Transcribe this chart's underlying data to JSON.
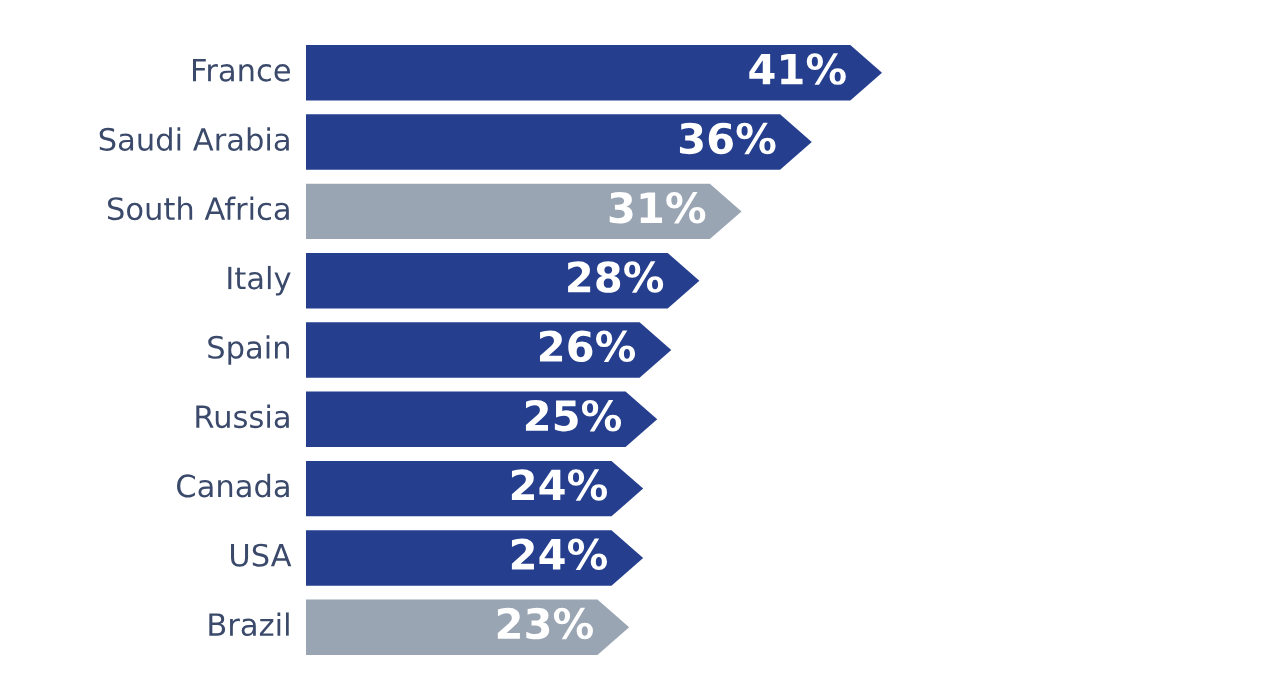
{
  "chart_data": {
    "type": "bar",
    "orientation": "horizontal",
    "data_labels": true,
    "categories": [
      "France",
      "Saudi Arabia",
      "South Africa",
      "Italy",
      "Spain",
      "Russia",
      "Canada",
      "USA",
      "Brazil"
    ],
    "values": [
      41,
      36,
      31,
      28,
      26,
      25,
      24,
      24,
      23
    ],
    "value_labels": [
      "41%",
      "36%",
      "31%",
      "28%",
      "26%",
      "25%",
      "24%",
      "24%",
      "23%"
    ],
    "colors": [
      "#253f8e",
      "#253f8e",
      "#9aa5b3",
      "#253f8e",
      "#253f8e",
      "#253f8e",
      "#253f8e",
      "#253f8e",
      "#9aa5b3"
    ],
    "legend": false
  }
}
